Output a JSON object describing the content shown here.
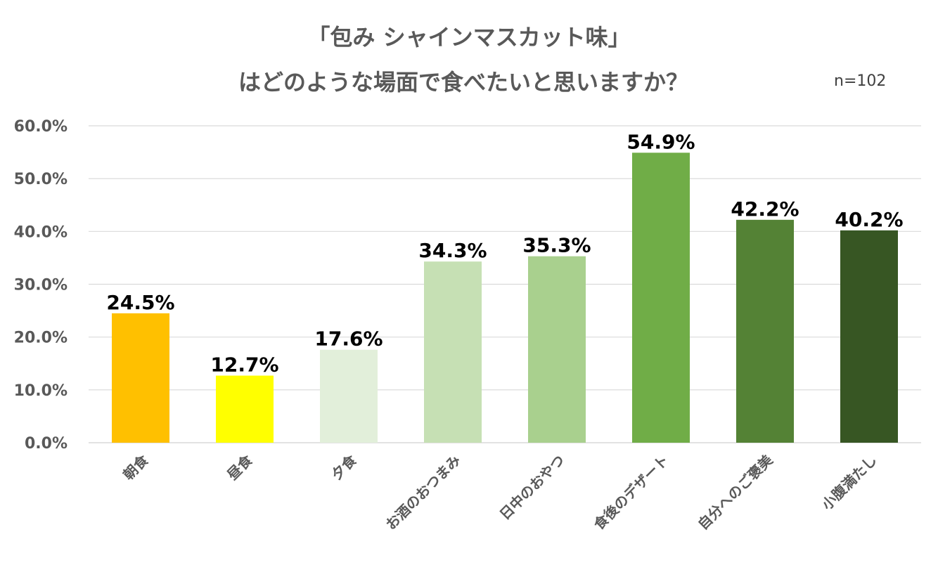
{
  "title_lines": [
    "「包み シャインマスカット味」",
    "はどのような場面で食べたいと思いますか？"
  ],
  "sample_size": "n=102",
  "chart_data": {
    "type": "bar",
    "title": "「包み シャインマスカット味」はどのような場面で食べたいと思いますか？",
    "categories": [
      "朝食",
      "昼食",
      "夕食",
      "お酒のおつまみ",
      "日中のおやつ",
      "食後のデザート",
      "自分へのご褒美",
      "小腹満たし"
    ],
    "values": [
      24.5,
      12.7,
      17.6,
      34.3,
      35.3,
      54.9,
      42.2,
      40.2
    ],
    "data_labels": [
      "24.5%",
      "12.7%",
      "17.6%",
      "34.3%",
      "35.3%",
      "54.9%",
      "42.2%",
      "40.2%"
    ],
    "bar_colors": [
      "#FFC000",
      "#FFFF00",
      "#E2EFDA",
      "#C6E0B4",
      "#A9D08E",
      "#70AD47",
      "#548235",
      "#375623"
    ],
    "ylim": [
      0,
      60
    ],
    "yticks": [
      0,
      10,
      20,
      30,
      40,
      50,
      60
    ],
    "ytick_labels": [
      "0.0%",
      "10.0%",
      "20.0%",
      "30.0%",
      "40.0%",
      "50.0%",
      "60.0%"
    ],
    "xlabel": "",
    "ylabel": "",
    "grid": true,
    "gridline_color": "#D9D9D9",
    "axis_text_color": "#595959"
  }
}
